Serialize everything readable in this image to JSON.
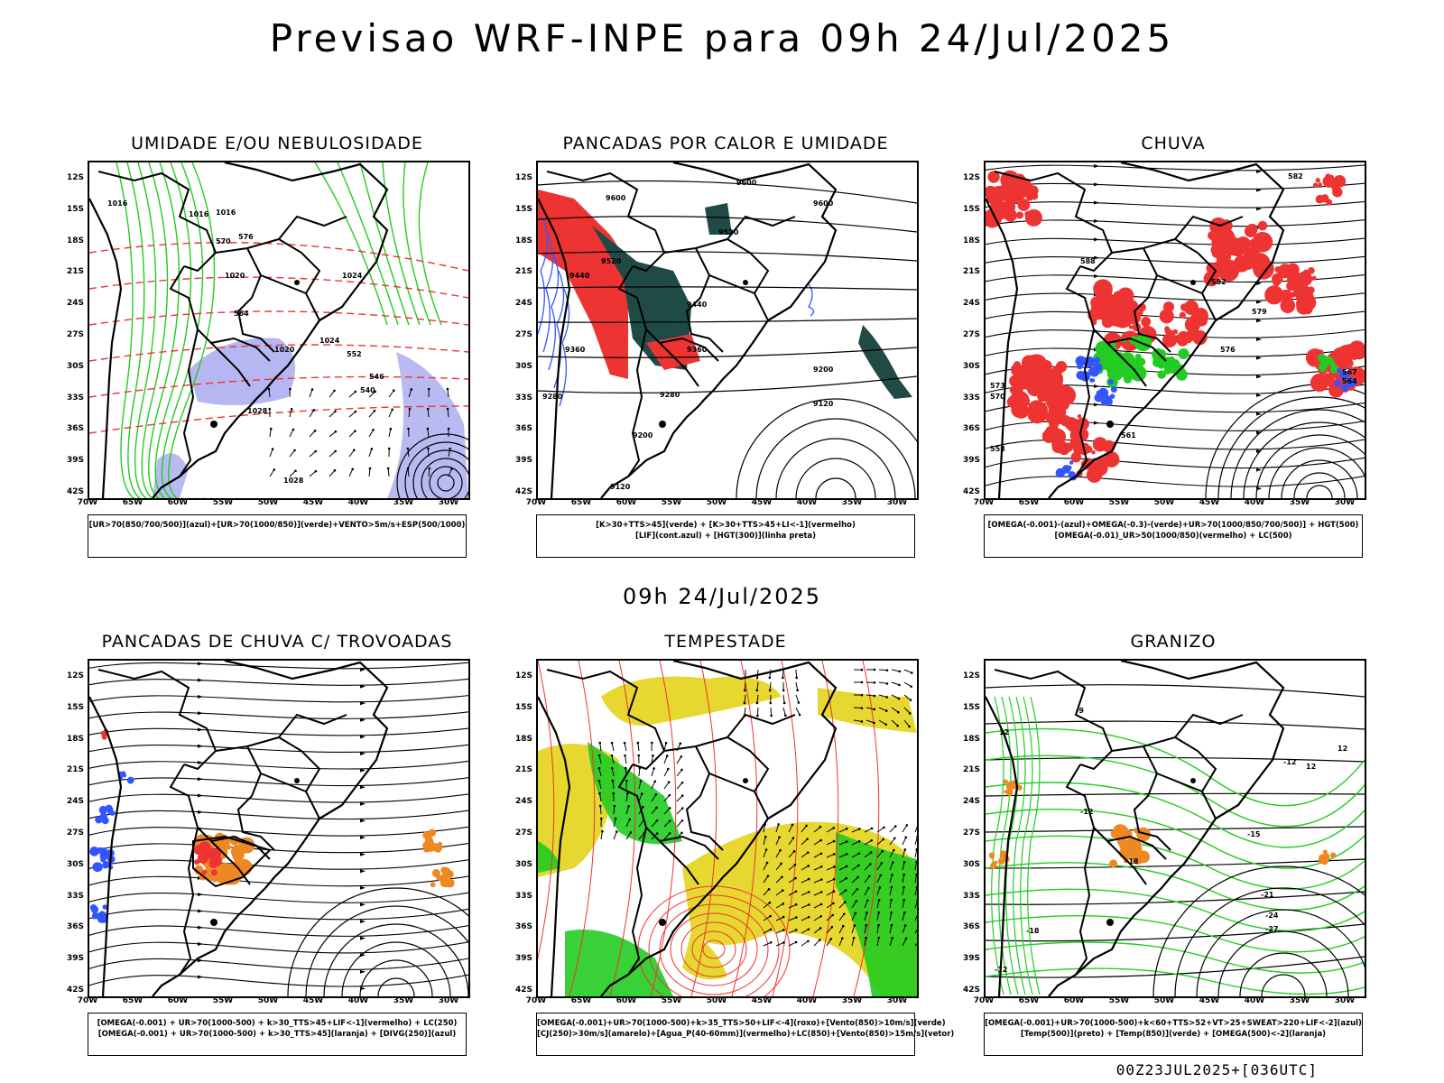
{
  "title": "Previsao WRF-INPE  para 09h 24/Jul/2025",
  "mid_date": "09h 24/Jul/2025",
  "footer": "00Z23JUL2025+[036UTC]",
  "axes": {
    "lat": [
      "12S",
      "15S",
      "18S",
      "21S",
      "24S",
      "27S",
      "30S",
      "33S",
      "36S",
      "39S",
      "42S"
    ],
    "lon": [
      "70W",
      "65W",
      "60W",
      "55W",
      "50W",
      "45W",
      "40W",
      "35W",
      "30W"
    ]
  },
  "colors": {
    "green": "#22cc22",
    "red": "#ee3333",
    "blue": "#3355ff",
    "lavender": "#a9a9f0",
    "darkteal": "#1f4a46",
    "yellow": "#e6d830",
    "orange": "#ee8822"
  },
  "panels": [
    {
      "id": "umidade",
      "title": "UMIDADE E/OU NEBULOSIDADE",
      "legend": [
        "[UR>70(850/700/500)](azul)+[UR>70(1000/850)](verde)+VENTO>5m/s+ESP(500/1000)"
      ],
      "contour_labels": [
        "1016",
        "1016",
        "1016",
        "1020",
        "1020",
        "1024",
        "1024",
        "1028",
        "1028",
        "552",
        "546",
        "540",
        "570",
        "576",
        "564"
      ]
    },
    {
      "id": "pancadas-calor",
      "title": "PANCADAS POR CALOR E UMIDADE",
      "legend": [
        "[K>30+TTS>45](verde) + [K>30+TTS>45+LI<-1](vermelho)",
        "[LIF](cont.azul) + [HGT(300)](linha preta)"
      ],
      "contour_labels": [
        "9600",
        "9600",
        "9600",
        "9520",
        "9520",
        "9440",
        "9440",
        "9360",
        "9360",
        "9280",
        "9280",
        "9200",
        "9200",
        "9120",
        "9120"
      ]
    },
    {
      "id": "chuva",
      "title": "CHUVA",
      "legend": [
        "[OMEGA(-0.001)-(azul)+OMEGA(-0.3)-(verde)+UR>70(1000/850/700/500)] + HGT(500)",
        "[OMEGA(-0.01)_UR>50(1000/850)(vermelho) + LC(500)"
      ],
      "contour_labels": [
        "588",
        "582",
        "582",
        "579",
        "576",
        "573",
        "570",
        "567",
        "564",
        "561",
        "558"
      ]
    },
    {
      "id": "pancadas-trovoadas",
      "title": "PANCADAS DE CHUVA C/ TROVOADAS",
      "legend": [
        "[OMEGA(-0.001) + UR>70(1000-500) + k>30_TTS>45+LIF<-1](vermelho) + LC(250)",
        "[OMEGA(-0.001) + UR>70(1000-500) + k>30_TTS>45](laranja) + [DIVG(250)](azul)"
      ],
      "contour_labels": []
    },
    {
      "id": "tempestade",
      "title": "TEMPESTADE",
      "legend": [
        "[OMEGA(-0.001)+UR>70(1000-500)+k>35_TTS>50+LIF<-4](roxo)+[Vento(850)>10m/s](verde)",
        "[CJ(250)>30m/s](amarelo)+[Agua_P(40-60mm)](vermelho)+LC(850)+[Vento(850)>15m/s](vetor)"
      ],
      "contour_labels": []
    },
    {
      "id": "granizo",
      "title": "GRANIZO",
      "legend": [
        "[OMEGA(-0.001)+UR>70(1000-500)+k<60+TTS>52+VT>25+SWEAT>220+LIF<-2](azul)",
        "[Temp(500)](preto) + [Temp(850)](verde) + [OMEGA(500)<-2](laranja)"
      ],
      "contour_labels": [
        "-9",
        "-12",
        "-12",
        "-15",
        "-18",
        "-21",
        "-24",
        "-27",
        "-12",
        "-18",
        "12",
        "12",
        "12"
      ]
    }
  ]
}
